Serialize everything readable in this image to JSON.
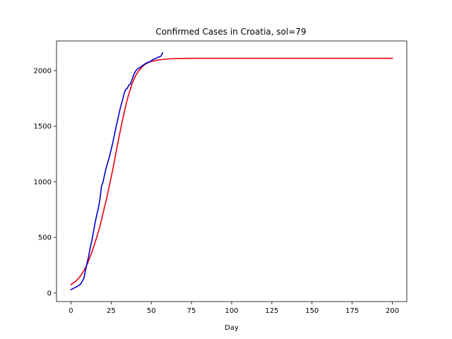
{
  "chart_data": {
    "type": "line",
    "title": "Confirmed Cases in Croatia, sol=79",
    "xlabel": "Day",
    "ylabel": "",
    "xlim": [
      -9,
      209
    ],
    "ylim": [
      -77,
      2267
    ],
    "xticks": [
      0,
      25,
      50,
      75,
      100,
      125,
      150,
      175,
      200
    ],
    "yticks": [
      0,
      500,
      1000,
      1500,
      2000
    ],
    "grid": false,
    "series": [
      {
        "color": "#e8000b",
        "x": [
          0,
          2,
          4,
          6,
          8,
          10,
          12,
          14,
          16,
          18,
          20,
          22,
          24,
          26,
          28,
          30,
          32,
          34,
          36,
          38,
          40,
          42,
          44,
          46,
          48,
          50,
          55,
          60,
          65,
          70,
          75,
          80,
          90,
          100,
          125,
          150,
          175,
          200
        ],
        "y": [
          75,
          95,
          120,
          155,
          200,
          255,
          330,
          410,
          500,
          600,
          720,
          840,
          970,
          1110,
          1260,
          1410,
          1550,
          1680,
          1790,
          1880,
          1950,
          1995,
          2030,
          2055,
          2072,
          2083,
          2097,
          2105,
          2109,
          2110,
          2111,
          2111,
          2111,
          2111,
          2111,
          2111,
          2111,
          2111
        ]
      },
      {
        "color": "#0000c8",
        "x": [
          0,
          2,
          4,
          6,
          8,
          9,
          10,
          11,
          12,
          13,
          14,
          15,
          16,
          17,
          18,
          19,
          20,
          21,
          22,
          23,
          24,
          25,
          26,
          27,
          28,
          29,
          30,
          31,
          32,
          33,
          34,
          35,
          36,
          37,
          38,
          39,
          40,
          41,
          42,
          43,
          44,
          45,
          46,
          47,
          48,
          49,
          50,
          51,
          52,
          53,
          54,
          55,
          56,
          57
        ],
        "y": [
          30,
          45,
          60,
          80,
          130,
          200,
          270,
          330,
          410,
          470,
          550,
          630,
          700,
          760,
          840,
          960,
          1000,
          1070,
          1130,
          1180,
          1230,
          1290,
          1350,
          1420,
          1490,
          1550,
          1620,
          1680,
          1730,
          1790,
          1830,
          1840,
          1870,
          1880,
          1920,
          1960,
          1990,
          2010,
          2020,
          2030,
          2040,
          2050,
          2060,
          2070,
          2075,
          2080,
          2090,
          2100,
          2105,
          2110,
          2120,
          2125,
          2130,
          2160
        ]
      }
    ]
  }
}
